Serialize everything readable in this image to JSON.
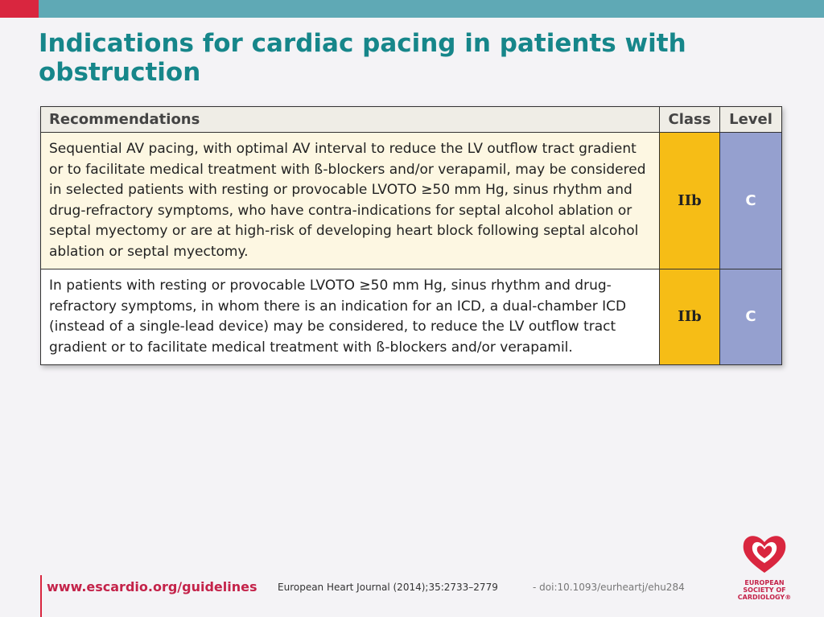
{
  "title": "Indications for cardiac pacing in patients with obstruction",
  "table": {
    "header": [
      "Recommendations",
      "Class",
      "Level"
    ],
    "rows": [
      [
        "Sequential AV pacing, with optimal AV interval to reduce the LV outflow tract gradient or to facilitate medical treatment with ß-blockers and/or verapamil, may be considered in selected patients with resting or provocable LVOTO ≥50 mm Hg, sinus rhythm and drug-refractory symptoms, who have contra-indications for septal alcohol ablation or septal myectomy or are at high-risk of developing heart block following septal alcohol ablation or septal myectomy.",
        "IIb",
        "C"
      ],
      [
        "In patients with resting or provocable LVOTO ≥50 mm Hg, sinus rhythm and drug-refractory symptoms, in whom there is an indication for an ICD, a dual-chamber ICD (instead of a single-lead device) may be considered, to reduce the LV outflow tract gradient or to facilitate medical treatment with ß-blockers and/or verapamil.",
        "IIb",
        "C"
      ]
    ]
  },
  "footer": {
    "url": "www.escardio.org/guidelines",
    "citation": "European Heart Journal (2014);35:2733–2779",
    "doi": "- doi:10.1093/eurheartj/ehu284"
  },
  "logo": [
    "EUROPEAN",
    "SOCIETY OF",
    "CARDIOLOGY®"
  ]
}
